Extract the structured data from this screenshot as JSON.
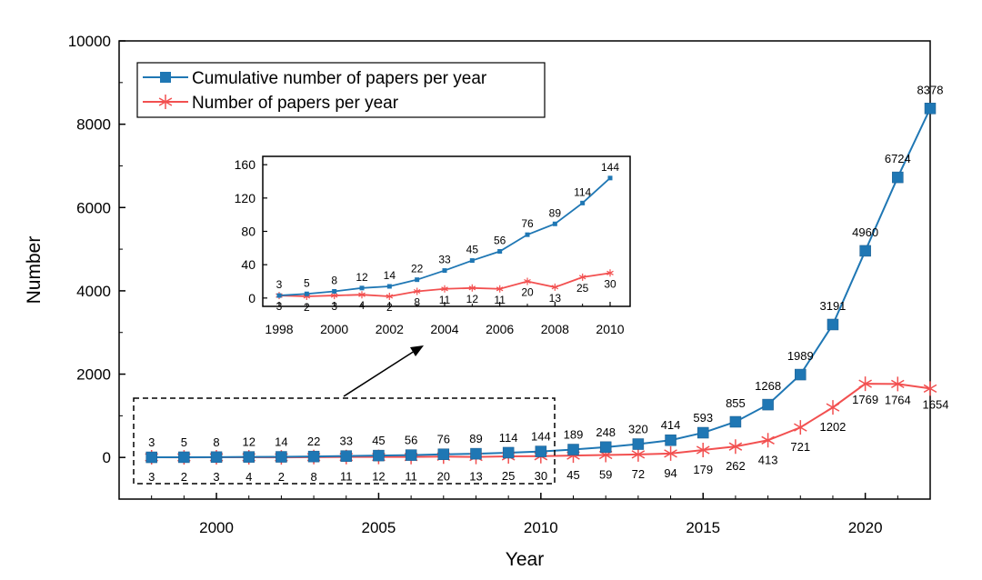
{
  "chart_data": {
    "type": "line",
    "xlabel": "Year",
    "ylabel": "Number",
    "xlim": [
      1997,
      2022
    ],
    "ylim": [
      -1000,
      10000
    ],
    "xticks": [
      2000,
      2005,
      2010,
      2015,
      2020
    ],
    "yticks": [
      0,
      2000,
      4000,
      6000,
      8000,
      10000
    ],
    "legend_position": "top-left",
    "x": [
      1998,
      1999,
      2000,
      2001,
      2002,
      2003,
      2004,
      2005,
      2006,
      2007,
      2008,
      2009,
      2010,
      2011,
      2012,
      2013,
      2014,
      2015,
      2016,
      2017,
      2018,
      2019,
      2020,
      2021,
      2022
    ],
    "series": [
      {
        "name": "Cumulative number of papers per year",
        "color": "#1f77b4",
        "marker": "square",
        "values": [
          3,
          5,
          8,
          12,
          14,
          22,
          33,
          45,
          56,
          76,
          89,
          114,
          144,
          189,
          248,
          320,
          414,
          593,
          855,
          1268,
          1989,
          3191,
          4960,
          6724,
          8378
        ]
      },
      {
        "name": "Number of papers per year",
        "color": "#f25050",
        "marker": "star",
        "values": [
          3,
          2,
          3,
          4,
          2,
          8,
          11,
          12,
          11,
          20,
          13,
          25,
          30,
          45,
          59,
          72,
          94,
          179,
          262,
          413,
          721,
          1202,
          1769,
          1764,
          1654
        ]
      }
    ],
    "inset": {
      "xlim": [
        1998,
        2010
      ],
      "ylim": [
        -10,
        170
      ],
      "xticks": [
        1998,
        2000,
        2002,
        2004,
        2006,
        2008,
        2010
      ],
      "yticks": [
        0,
        40,
        80,
        120,
        160
      ],
      "x": [
        1998,
        1999,
        2000,
        2001,
        2002,
        2003,
        2004,
        2005,
        2006,
        2007,
        2008,
        2009,
        2010
      ],
      "series": [
        {
          "name": "Cumulative number of papers per year",
          "color": "#1f77b4",
          "values": [
            3,
            5,
            8,
            12,
            14,
            22,
            33,
            45,
            56,
            76,
            89,
            114,
            144
          ]
        },
        {
          "name": "Number of papers per year",
          "color": "#f25050",
          "values": [
            3,
            2,
            3,
            4,
            2,
            8,
            11,
            12,
            11,
            20,
            13,
            25,
            30
          ]
        }
      ]
    }
  }
}
